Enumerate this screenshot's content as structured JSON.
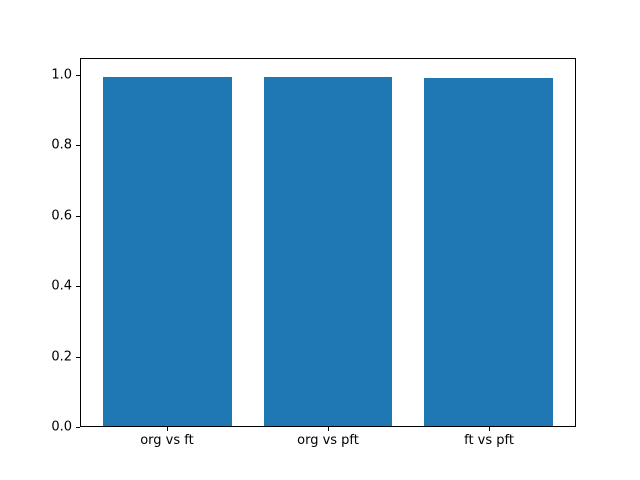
{
  "chart_data": {
    "type": "bar",
    "categories": [
      "org vs ft",
      "org vs pft",
      "ft vs pft"
    ],
    "values": [
      0.998,
      0.998,
      0.995
    ],
    "title": "",
    "xlabel": "",
    "ylabel": "",
    "ylim": [
      0,
      1.048
    ],
    "yticks": [
      0.0,
      0.2,
      0.4,
      0.6,
      0.8,
      1.0
    ],
    "bar_width": 0.8,
    "bar_color": "#1f77b4",
    "axis_color": "#000000",
    "background": "#ffffff",
    "grid": false,
    "legend": "none"
  }
}
